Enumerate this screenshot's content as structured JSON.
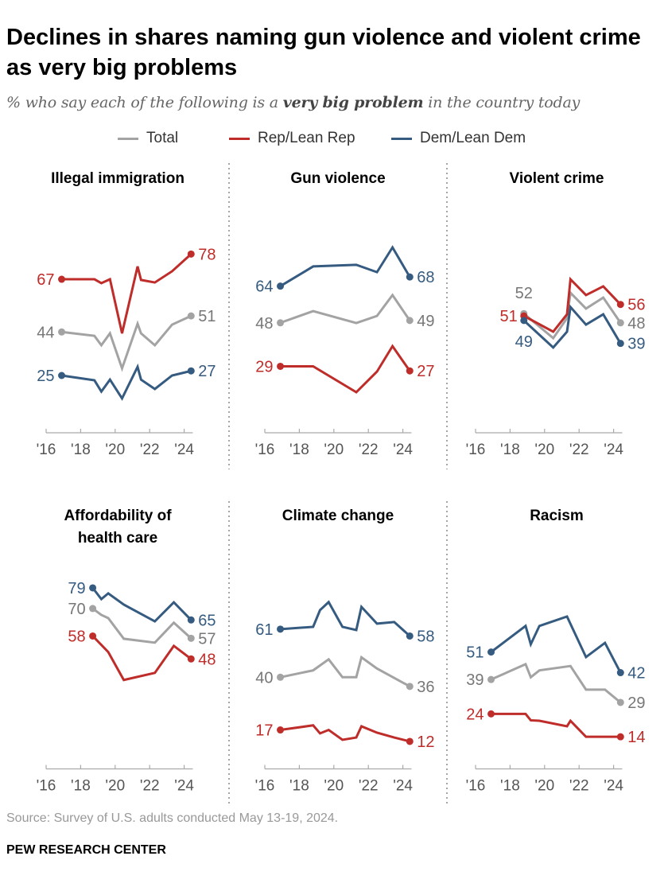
{
  "title": "Declines in shares naming gun violence and violent crime as very big problems",
  "subtitle": {
    "pre": "% who say each of the following is a ",
    "bold": "very big problem",
    "post": " in the country today"
  },
  "legend": [
    {
      "name": "Total",
      "color": "#a3a3a3"
    },
    {
      "name": "Rep/Lean Rep",
      "color": "#bf2d2a"
    },
    {
      "name": "Dem/Lean Dem",
      "color": "#365b80"
    }
  ],
  "label_colors": {
    "Total": "#777777",
    "Rep/Lean Rep": "#bf2d2a",
    "Dem/Lean Dem": "#365b80"
  },
  "source": "Source: Survey of U.S. adults conducted May 13-19, 2024.",
  "org": "PEW RESEARCH CENTER",
  "chart_data": [
    {
      "type": "line",
      "title": "Illegal immigration",
      "xticks": [
        "'16",
        "'18",
        "'20",
        "'22",
        "'24"
      ],
      "xlim": [
        2016,
        2024.5
      ],
      "ylim": [
        0,
        100
      ],
      "series": [
        {
          "name": "Total",
          "x": [
            2016.9,
            2018.8,
            2019.2,
            2019.7,
            2020.4,
            2021.3,
            2021.5,
            2022.3,
            2023.3,
            2024.4
          ],
          "y": [
            44,
            42.3,
            38.2,
            43.4,
            28.1,
            47.6,
            43.4,
            38.2,
            47.2,
            51
          ],
          "start_label": "44",
          "end_label": "51"
        },
        {
          "name": "Rep/Lean Rep",
          "x": [
            2016.9,
            2018.8,
            2019.2,
            2019.7,
            2020.4,
            2021.3,
            2021.5,
            2022.3,
            2023.3,
            2024.4
          ],
          "y": [
            67,
            67,
            65.3,
            67,
            43.4,
            72.6,
            66.7,
            65.6,
            70.5,
            78
          ],
          "start_label": "67",
          "end_label": "78"
        },
        {
          "name": "Dem/Lean Dem",
          "x": [
            2016.9,
            2018.8,
            2019.2,
            2019.7,
            2020.4,
            2021.3,
            2021.5,
            2022.3,
            2023.3,
            2024.4
          ],
          "y": [
            25,
            22.9,
            18,
            23.2,
            15,
            28.8,
            23.2,
            19.1,
            25,
            27
          ],
          "start_label": "25",
          "end_label": "27"
        }
      ]
    },
    {
      "type": "line",
      "title": "Gun violence",
      "xticks": [
        "'16",
        "'18",
        "'20",
        "'22",
        "'24"
      ],
      "xlim": [
        2016,
        2024.5
      ],
      "ylim": [
        0,
        100
      ],
      "series": [
        {
          "name": "Total",
          "x": [
            2016.9,
            2018.8,
            2021.3,
            2022.5,
            2023.4,
            2024.4
          ],
          "y": [
            48,
            53.1,
            47.9,
            51,
            60.1,
            49
          ],
          "start_label": "48",
          "end_label": "49"
        },
        {
          "name": "Rep/Lean Rep",
          "x": [
            2016.9,
            2018.8,
            2021.3,
            2022.5,
            2023.4,
            2024.4
          ],
          "y": [
            29,
            29,
            17.7,
            26.7,
            37.8,
            27
          ],
          "start_label": "29",
          "end_label": "27"
        },
        {
          "name": "Dem/Lean Dem",
          "x": [
            2016.9,
            2018.8,
            2021.3,
            2022.5,
            2023.4,
            2024.4
          ],
          "y": [
            64,
            72.6,
            73.3,
            70.1,
            80.9,
            68
          ],
          "start_label": "64",
          "end_label": "68"
        }
      ]
    },
    {
      "type": "line",
      "title": "Violent crime",
      "xticks": [
        "'16",
        "'18",
        "'20",
        "'22",
        "'24"
      ],
      "xlim": [
        2016,
        2024.5
      ],
      "ylim": [
        0,
        100
      ],
      "series": [
        {
          "name": "Total",
          "x": [
            2018.8,
            2020.5,
            2021.3,
            2021.5,
            2022.4,
            2023.4,
            2024.4
          ],
          "y": [
            52,
            41.3,
            50,
            61.1,
            54.2,
            59,
            48
          ],
          "start_label": "52",
          "end_label": "48"
        },
        {
          "name": "Rep/Lean Rep",
          "x": [
            2018.8,
            2020.5,
            2021.3,
            2021.5,
            2022.4,
            2023.4,
            2024.4
          ],
          "y": [
            51,
            44.1,
            51.7,
            67,
            60.1,
            63.9,
            56
          ],
          "start_label": "51",
          "end_label": "56"
        },
        {
          "name": "Dem/Lean Dem",
          "x": [
            2018.8,
            2020.5,
            2021.3,
            2021.5,
            2022.4,
            2023.4,
            2024.4
          ],
          "y": [
            49,
            37.2,
            44.1,
            54.9,
            47.2,
            51.7,
            39
          ],
          "start_label": "49",
          "end_label": "39"
        }
      ]
    },
    {
      "type": "line",
      "title": "Affordability of health care",
      "xticks": [
        "'16",
        "'18",
        "'20",
        "'22",
        "'24"
      ],
      "xlim": [
        2016,
        2024.5
      ],
      "ylim": [
        0,
        100
      ],
      "series": [
        {
          "name": "Total",
          "x": [
            2018.7,
            2019.2,
            2019.6,
            2020.5,
            2022.3,
            2023.4,
            2024.4
          ],
          "y": [
            70,
            67.2,
            65.8,
            56.8,
            55.1,
            63.8,
            57
          ],
          "start_label": "70",
          "end_label": "57"
        },
        {
          "name": "Rep/Lean Rep",
          "x": [
            2018.7,
            2019.6,
            2020.5,
            2022.3,
            2023.4,
            2024.4
          ],
          "y": [
            58,
            51,
            38.8,
            41.9,
            53.7,
            48
          ],
          "start_label": "58",
          "end_label": "48"
        },
        {
          "name": "Dem/Lean Dem",
          "x": [
            2018.7,
            2019.2,
            2019.6,
            2020.5,
            2022.3,
            2023.4,
            2024.4
          ],
          "y": [
            79,
            74.1,
            76.6,
            71.7,
            64.4,
            72.7,
            65
          ],
          "start_label": "79",
          "end_label": "65"
        }
      ]
    },
    {
      "type": "line",
      "title": "Climate change",
      "xticks": [
        "'16",
        "'18",
        "'20",
        "'22",
        "'24"
      ],
      "xlim": [
        2016,
        2024.5
      ],
      "ylim": [
        0,
        100
      ],
      "series": [
        {
          "name": "Total",
          "x": [
            2016.9,
            2018.8,
            2019.7,
            2020.5,
            2021.3,
            2021.6,
            2022.5,
            2024.4
          ],
          "y": [
            40,
            43,
            47.8,
            40,
            40,
            48.7,
            43.8,
            36
          ],
          "start_label": "40",
          "end_label": "36"
        },
        {
          "name": "Rep/Lean Rep",
          "x": [
            2016.9,
            2018.8,
            2019.2,
            2019.7,
            2020.5,
            2021.3,
            2021.6,
            2022.5,
            2023.5,
            2024.4
          ],
          "y": [
            17,
            19,
            15.5,
            17,
            12.7,
            13.7,
            18.6,
            15.8,
            13.7,
            12
          ],
          "start_label": "17",
          "end_label": "12"
        },
        {
          "name": "Dem/Lean Dem",
          "x": [
            2016.9,
            2018.8,
            2019.2,
            2019.7,
            2020.5,
            2021.3,
            2021.6,
            2022.5,
            2023.5,
            2024.4
          ],
          "y": [
            61,
            62,
            69.3,
            72.8,
            62,
            60.6,
            70.7,
            63.4,
            64.1,
            58
          ],
          "start_label": "61",
          "end_label": "58"
        }
      ]
    },
    {
      "type": "line",
      "title": "Racism",
      "xticks": [
        "'16",
        "'18",
        "'20",
        "'22",
        "'24"
      ],
      "xlim": [
        2016,
        2024.5
      ],
      "ylim": [
        0,
        100
      ],
      "series": [
        {
          "name": "Total",
          "x": [
            2016.9,
            2018.9,
            2019.2,
            2019.7,
            2021.5,
            2022.4,
            2023.5,
            2024.4
          ],
          "y": [
            39,
            45.7,
            40,
            43,
            44.9,
            34.6,
            34.6,
            29
          ],
          "start_label": "39",
          "end_label": "29"
        },
        {
          "name": "Rep/Lean Rep",
          "x": [
            2016.9,
            2018.9,
            2019.2,
            2019.7,
            2021.3,
            2021.5,
            2022.4,
            2024.4
          ],
          "y": [
            24,
            24,
            21.2,
            21,
            18.6,
            21,
            14,
            14
          ],
          "start_label": "24",
          "end_label": "14"
        },
        {
          "name": "Dem/Lean Dem",
          "x": [
            2016.9,
            2018.9,
            2019.2,
            2019.7,
            2021.3,
            2022.4,
            2023.5,
            2024.4
          ],
          "y": [
            51,
            62.4,
            54.4,
            62.4,
            66.5,
            48.8,
            55,
            42
          ],
          "start_label": "51",
          "end_label": "42"
        }
      ]
    }
  ]
}
